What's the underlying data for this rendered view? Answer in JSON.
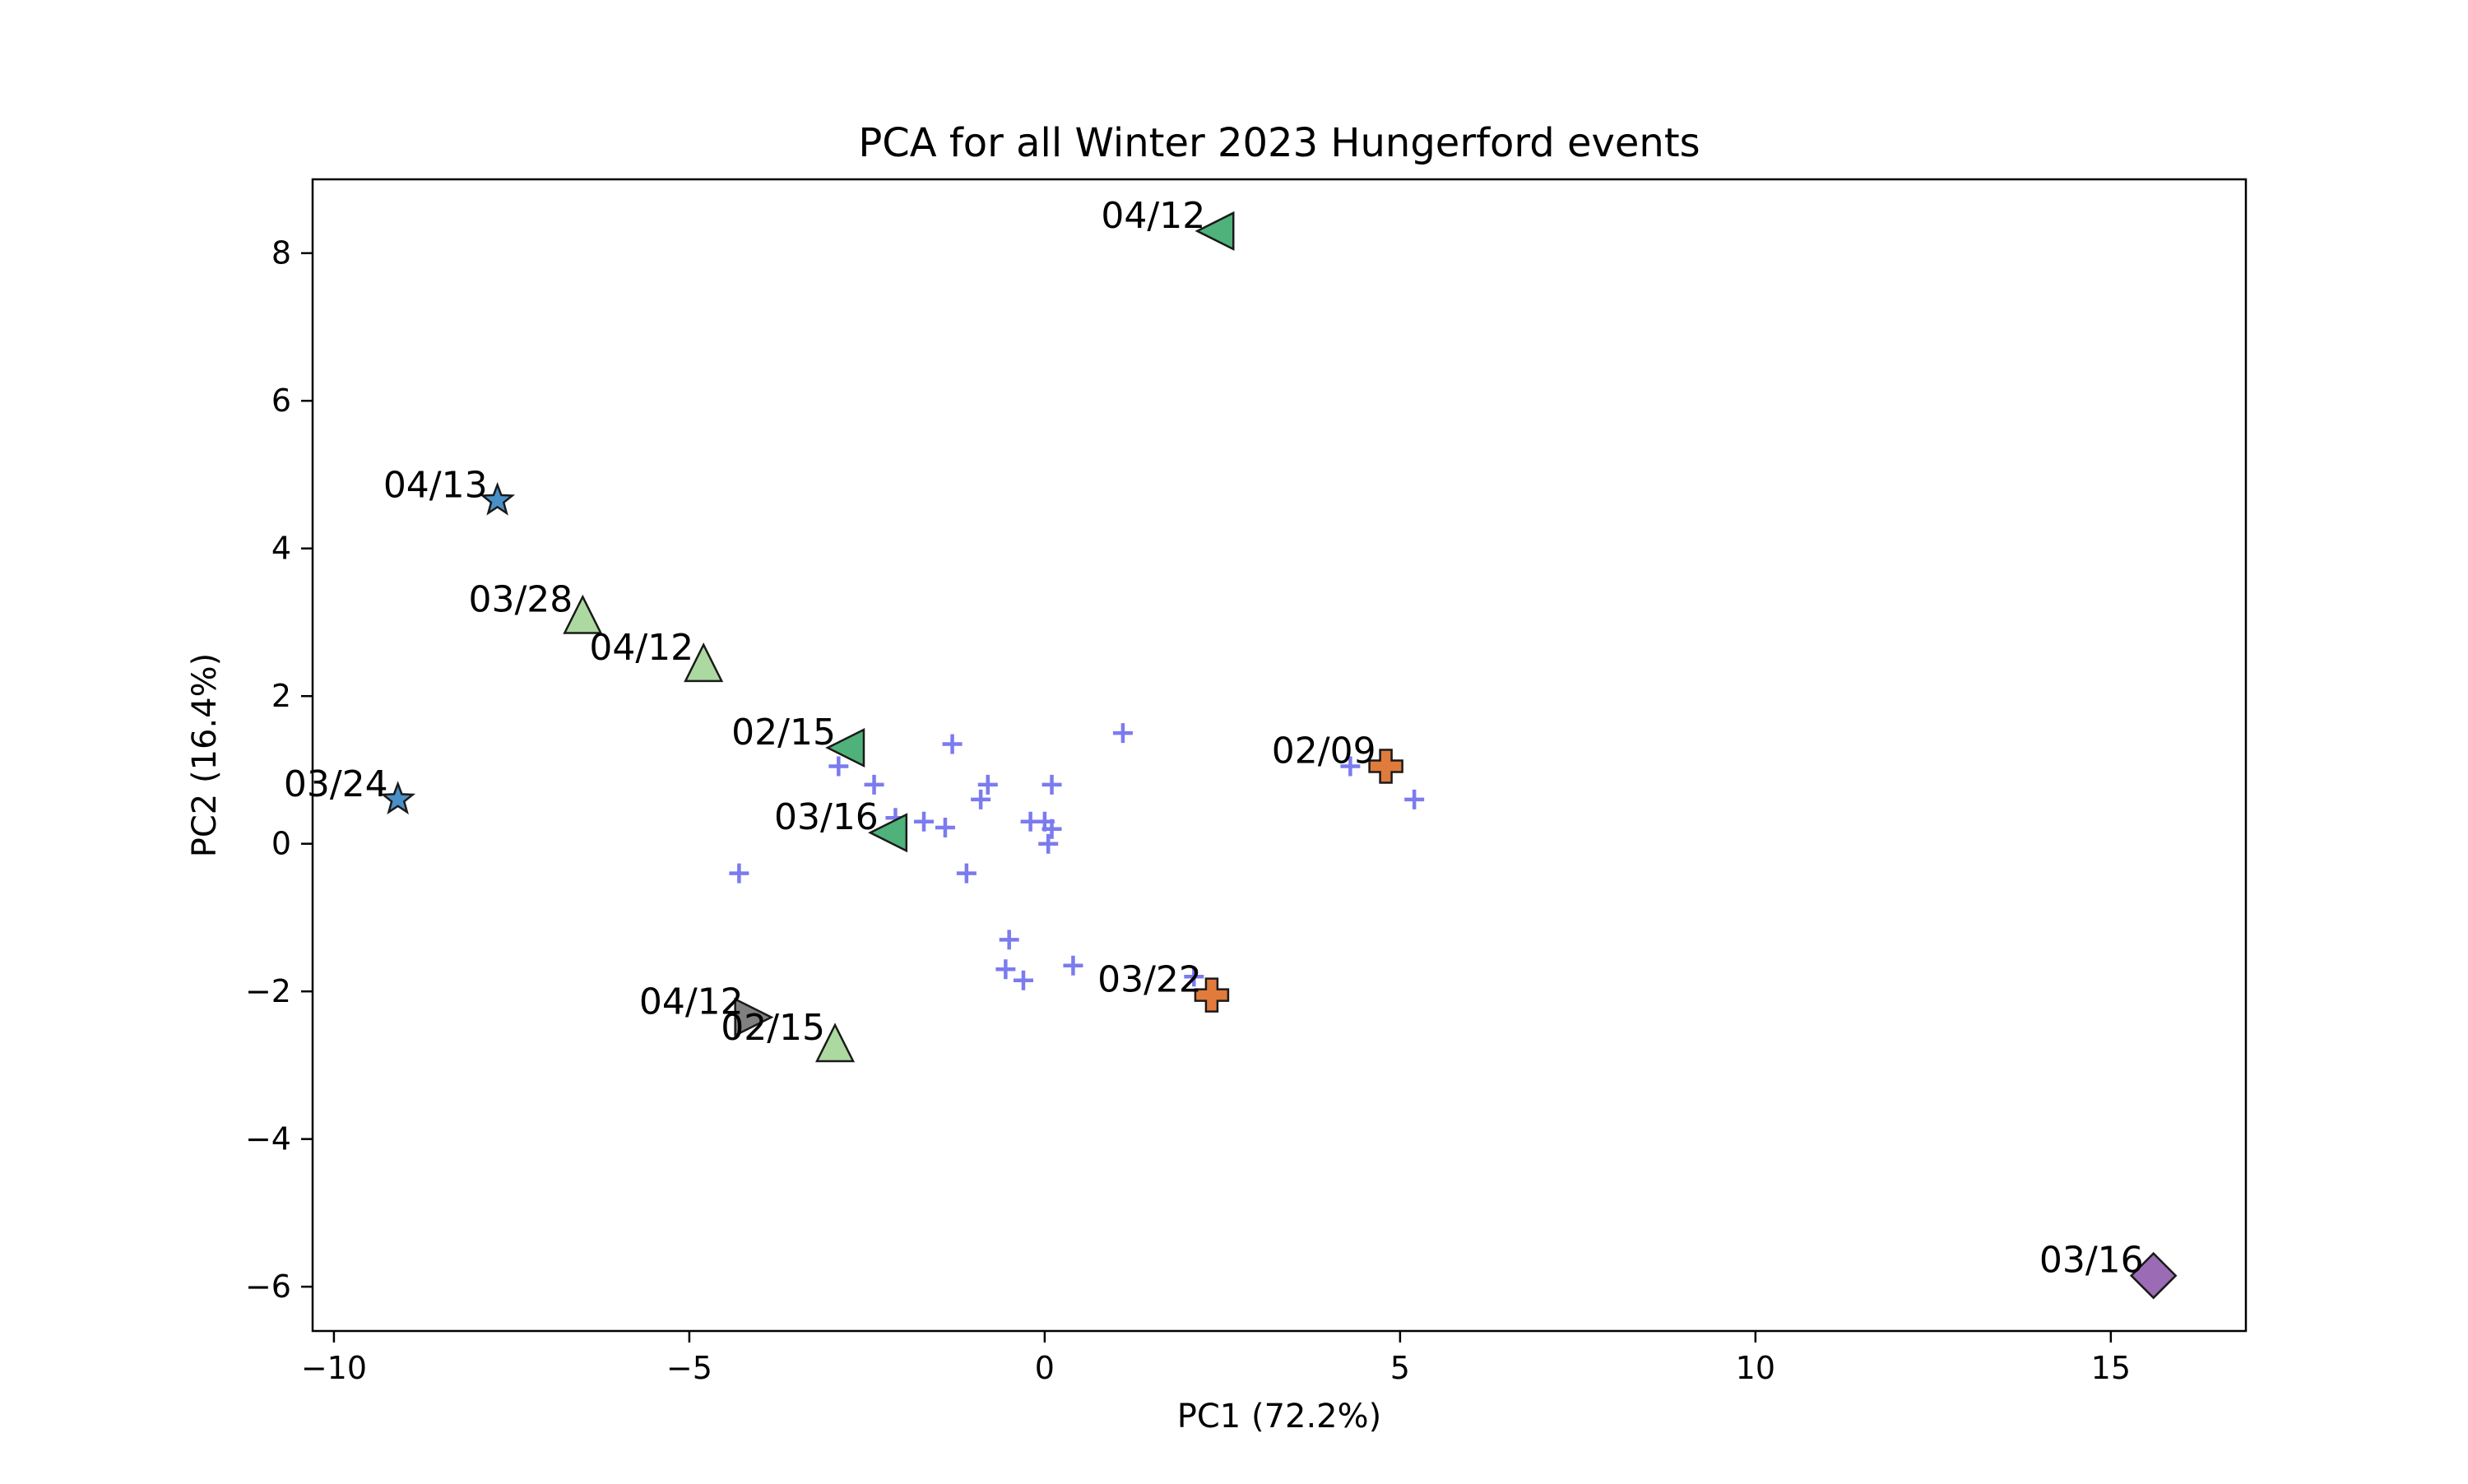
{
  "chart_data": {
    "type": "scatter",
    "title": "PCA for all Winter 2023 Hungerford events",
    "xlabel": "PC1 (72.2%)",
    "ylabel": "PC2 (16.4%)",
    "xlim": [
      -10.3,
      16.9
    ],
    "ylim": [
      -6.6,
      9.0
    ],
    "xticks": [
      -10,
      -5,
      0,
      5,
      10,
      15
    ],
    "xtick_labels": [
      "−10",
      "−5",
      "0",
      "5",
      "10",
      "15"
    ],
    "yticks": [
      -6,
      -4,
      -2,
      0,
      2,
      4,
      6,
      8
    ],
    "ytick_labels": [
      "−6",
      "−4",
      "−2",
      "0",
      "2",
      "4",
      "6",
      "8"
    ],
    "grid": false,
    "legend": "none",
    "background_points": {
      "marker": "plus",
      "color": "#7b7bef",
      "points": [
        [
          -4.3,
          -0.4
        ],
        [
          -2.9,
          1.05
        ],
        [
          -2.4,
          0.8
        ],
        [
          -2.1,
          0.35
        ],
        [
          -1.7,
          0.3
        ],
        [
          -1.3,
          1.35
        ],
        [
          -1.4,
          0.22
        ],
        [
          -1.1,
          -0.4
        ],
        [
          -0.8,
          0.8
        ],
        [
          -0.9,
          0.6
        ],
        [
          -0.2,
          0.3
        ],
        [
          0.0,
          0.3
        ],
        [
          0.1,
          0.8
        ],
        [
          0.1,
          0.2
        ],
        [
          0.05,
          0.0
        ],
        [
          -0.5,
          -1.3
        ],
        [
          -0.55,
          -1.7
        ],
        [
          -0.3,
          -1.85
        ],
        [
          0.4,
          -1.65
        ],
        [
          1.1,
          1.5
        ],
        [
          2.1,
          -1.8
        ],
        [
          4.3,
          1.05
        ],
        [
          5.2,
          0.6
        ]
      ]
    },
    "highlighted_points": [
      {
        "label": "04/12",
        "x": 2.4,
        "y": 8.3,
        "marker": "triangle-left",
        "color": "#4fb27a"
      },
      {
        "label": "04/13",
        "x": -7.7,
        "y": 4.65,
        "marker": "star",
        "color": "#4a90c8"
      },
      {
        "label": "03/28",
        "x": -6.5,
        "y": 3.1,
        "marker": "triangle-up",
        "color": "#acd9a0"
      },
      {
        "label": "04/12",
        "x": -4.8,
        "y": 2.45,
        "marker": "triangle-up",
        "color": "#acd9a0"
      },
      {
        "label": "02/15",
        "x": -2.8,
        "y": 1.3,
        "marker": "triangle-left",
        "color": "#4fb27a"
      },
      {
        "label": "03/24",
        "x": -9.1,
        "y": 0.6,
        "marker": "star",
        "color": "#4a90c8"
      },
      {
        "label": "03/16",
        "x": -2.2,
        "y": 0.15,
        "marker": "triangle-left",
        "color": "#4fb27a"
      },
      {
        "label": "02/09",
        "x": 4.8,
        "y": 1.05,
        "marker": "plus-thick",
        "color": "#e07b3c"
      },
      {
        "label": "03/22",
        "x": 2.35,
        "y": -2.05,
        "marker": "plus-thick",
        "color": "#e07b3c"
      },
      {
        "label": "04/12",
        "x": -4.1,
        "y": -2.35,
        "marker": "triangle-right",
        "color": "#808080"
      },
      {
        "label": "02/15",
        "x": -2.95,
        "y": -2.7,
        "marker": "triangle-up",
        "color": "#acd9a0"
      },
      {
        "label": "03/16",
        "x": 15.6,
        "y": -5.85,
        "marker": "diamond",
        "color": "#9b6bb5"
      }
    ]
  }
}
